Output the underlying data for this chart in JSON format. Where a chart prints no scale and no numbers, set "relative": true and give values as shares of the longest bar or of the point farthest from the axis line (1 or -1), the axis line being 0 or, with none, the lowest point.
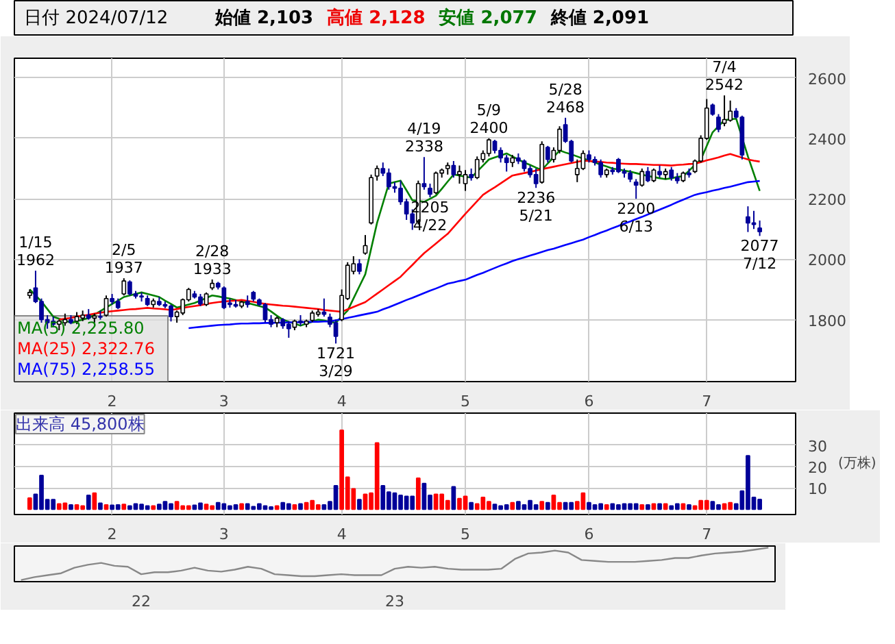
{
  "chart_data": [
    {
      "type": "candlestick",
      "title": "日付 2024/07/12",
      "categories": [
        null,
        null,
        null,
        null,
        null,
        null,
        null,
        null,
        null,
        null,
        null,
        null,
        null,
        null,
        "2",
        null,
        null,
        null,
        null,
        null,
        null,
        null,
        null,
        null,
        null,
        null,
        null,
        null,
        null,
        null,
        null,
        null,
        null,
        "3",
        null,
        null,
        null,
        null,
        null,
        null,
        null,
        null,
        null,
        null,
        null,
        null,
        null,
        null,
        null,
        null,
        null,
        null,
        null,
        "4",
        null,
        null,
        null,
        null,
        null,
        null,
        null,
        null,
        null,
        null,
        null,
        null,
        null,
        null,
        null,
        null,
        null,
        null,
        null,
        null,
        "5",
        null,
        null,
        null,
        null,
        null,
        null,
        null,
        null,
        null,
        null,
        null,
        null,
        null,
        null,
        null,
        null,
        null,
        null,
        null,
        null,
        "6",
        null,
        null,
        null,
        null,
        null,
        null,
        null,
        null,
        null,
        null,
        null,
        null,
        null,
        null,
        null,
        null,
        null,
        null,
        null,
        "7",
        null,
        null,
        null,
        null,
        null,
        null,
        null,
        null,
        null
      ],
      "ohlc": [
        [
          1880,
          1900,
          1870,
          1890
        ],
        [
          1905,
          1962,
          1855,
          1860
        ],
        [
          1860,
          1870,
          1790,
          1800
        ],
        [
          1800,
          1815,
          1770,
          1790
        ],
        [
          1795,
          1810,
          1775,
          1785
        ],
        [
          1785,
          1800,
          1765,
          1795
        ],
        [
          1790,
          1820,
          1780,
          1800
        ],
        [
          1800,
          1815,
          1785,
          1790
        ],
        [
          1795,
          1825,
          1785,
          1810
        ],
        [
          1805,
          1830,
          1795,
          1815
        ],
        [
          1815,
          1835,
          1800,
          1805
        ],
        [
          1805,
          1820,
          1790,
          1812
        ],
        [
          1810,
          1830,
          1800,
          1808
        ],
        [
          1815,
          1880,
          1810,
          1870
        ],
        [
          1870,
          1885,
          1850,
          1860
        ],
        [
          1860,
          1870,
          1835,
          1840
        ],
        [
          1885,
          1937,
          1880,
          1928
        ],
        [
          1925,
          1930,
          1880,
          1885
        ],
        [
          1885,
          1895,
          1870,
          1878
        ],
        [
          1878,
          1890,
          1860,
          1875
        ],
        [
          1870,
          1880,
          1845,
          1850
        ],
        [
          1850,
          1870,
          1840,
          1862
        ],
        [
          1860,
          1875,
          1845,
          1850
        ],
        [
          1850,
          1860,
          1838,
          1845
        ],
        [
          1845,
          1850,
          1794,
          1810
        ],
        [
          1810,
          1830,
          1790,
          1825
        ],
        [
          1822,
          1870,
          1815,
          1866
        ],
        [
          1866,
          1905,
          1860,
          1900
        ],
        [
          1885,
          1895,
          1870,
          1875
        ],
        [
          1875,
          1885,
          1845,
          1852
        ],
        [
          1850,
          1890,
          1845,
          1885
        ],
        [
          1905,
          1933,
          1898,
          1920
        ],
        [
          1920,
          1925,
          1900,
          1908
        ],
        [
          1905,
          1910,
          1835,
          1840
        ],
        [
          1855,
          1870,
          1840,
          1850
        ],
        [
          1850,
          1865,
          1840,
          1845
        ],
        [
          1845,
          1862,
          1838,
          1858
        ],
        [
          1860,
          1880,
          1840,
          1850
        ],
        [
          1890,
          1895,
          1860,
          1868
        ],
        [
          1865,
          1870,
          1845,
          1850
        ],
        [
          1850,
          1855,
          1790,
          1800
        ],
        [
          1800,
          1815,
          1775,
          1785
        ],
        [
          1790,
          1810,
          1775,
          1805
        ],
        [
          1800,
          1805,
          1770,
          1780
        ],
        [
          1785,
          1795,
          1740,
          1770
        ],
        [
          1775,
          1800,
          1765,
          1795
        ],
        [
          1795,
          1815,
          1780,
          1790
        ],
        [
          1785,
          1800,
          1775,
          1795
        ],
        [
          1798,
          1830,
          1792,
          1822
        ],
        [
          1818,
          1835,
          1810,
          1825
        ],
        [
          1825,
          1870,
          1810,
          1818
        ],
        [
          1808,
          1820,
          1775,
          1785
        ],
        [
          1790,
          1800,
          1721,
          1745
        ],
        [
          1800,
          1900,
          1795,
          1880
        ],
        [
          1870,
          1990,
          1865,
          1980
        ],
        [
          1960,
          2010,
          1950,
          1985
        ],
        [
          1985,
          2000,
          1950,
          1960
        ],
        [
          2020,
          2080,
          2015,
          2045
        ],
        [
          2120,
          2280,
          2115,
          2270
        ],
        [
          2275,
          2310,
          2260,
          2300
        ],
        [
          2300,
          2320,
          2275,
          2285
        ],
        [
          2285,
          2300,
          2230,
          2240
        ],
        [
          2240,
          2255,
          2220,
          2235
        ],
        [
          2235,
          2260,
          2180,
          2190
        ],
        [
          2190,
          2200,
          2130,
          2150
        ],
        [
          2150,
          2165,
          2097,
          2120
        ],
        [
          2125,
          2260,
          2115,
          2250
        ],
        [
          2250,
          2338,
          2230,
          2240
        ],
        [
          2235,
          2250,
          2205,
          2215
        ],
        [
          2220,
          2290,
          2215,
          2285
        ],
        [
          2285,
          2300,
          2270,
          2295
        ],
        [
          2300,
          2320,
          2280,
          2310
        ],
        [
          2310,
          2325,
          2270,
          2280
        ],
        [
          2280,
          2310,
          2250,
          2290
        ],
        [
          2250,
          2295,
          2226,
          2280
        ],
        [
          2280,
          2300,
          2260,
          2270
        ],
        [
          2270,
          2340,
          2265,
          2330
        ],
        [
          2330,
          2360,
          2320,
          2350
        ],
        [
          2350,
          2400,
          2340,
          2395
        ],
        [
          2390,
          2395,
          2350,
          2360
        ],
        [
          2360,
          2370,
          2320,
          2335
        ],
        [
          2335,
          2345,
          2290,
          2320
        ],
        [
          2320,
          2345,
          2305,
          2335
        ],
        [
          2335,
          2350,
          2315,
          2325
        ],
        [
          2325,
          2330,
          2290,
          2300
        ],
        [
          2300,
          2310,
          2270,
          2280
        ],
        [
          2280,
          2300,
          2236,
          2250
        ],
        [
          2255,
          2390,
          2250,
          2380
        ],
        [
          2370,
          2375,
          2320,
          2330
        ],
        [
          2330,
          2370,
          2320,
          2360
        ],
        [
          2360,
          2440,
          2350,
          2430
        ],
        [
          2445,
          2468,
          2385,
          2390
        ],
        [
          2390,
          2395,
          2320,
          2325
        ],
        [
          2280,
          2330,
          2255,
          2300
        ],
        [
          2300,
          2360,
          2295,
          2350
        ],
        [
          2345,
          2360,
          2320,
          2330
        ],
        [
          2330,
          2340,
          2310,
          2320
        ],
        [
          2320,
          2330,
          2270,
          2280
        ],
        [
          2280,
          2300,
          2270,
          2295
        ],
        [
          2295,
          2305,
          2280,
          2290
        ],
        [
          2330,
          2335,
          2285,
          2290
        ],
        [
          2290,
          2300,
          2270,
          2285
        ],
        [
          2285,
          2295,
          2255,
          2265
        ],
        [
          2255,
          2265,
          2200,
          2245
        ],
        [
          2245,
          2300,
          2240,
          2290
        ],
        [
          2290,
          2305,
          2255,
          2260
        ],
        [
          2260,
          2300,
          2255,
          2295
        ],
        [
          2290,
          2310,
          2270,
          2280
        ],
        [
          2280,
          2300,
          2265,
          2290
        ],
        [
          2295,
          2305,
          2260,
          2270
        ],
        [
          2270,
          2285,
          2250,
          2260
        ],
        [
          2260,
          2290,
          2255,
          2285
        ],
        [
          2285,
          2300,
          2270,
          2280
        ],
        [
          2290,
          2330,
          2285,
          2325
        ],
        [
          2325,
          2410,
          2320,
          2400
        ],
        [
          2400,
          2530,
          2395,
          2500
        ],
        [
          2510,
          2515,
          2475,
          2480
        ],
        [
          2470,
          2480,
          2420,
          2430
        ],
        [
          2450,
          2542,
          2440,
          2462
        ],
        [
          2460,
          2525,
          2455,
          2490
        ],
        [
          2490,
          2500,
          2465,
          2470
        ],
        [
          2470,
          2475,
          2330,
          2345
        ],
        [
          2140,
          2175,
          2090,
          2120
        ],
        [
          2120,
          2160,
          2100,
          2115
        ],
        [
          2103,
          2128,
          2077,
          2091
        ]
      ],
      "series": [
        {
          "type": "line",
          "name": "MA(5)  2,225.80",
          "color": "#008000",
          "values": [
            1900,
            1880,
            1860,
            1835,
            1810,
            1803,
            1797,
            1790,
            1795,
            1800,
            1805,
            1817,
            1828,
            1840,
            1852,
            1863,
            1875,
            1880,
            1885,
            1890,
            1885,
            1880,
            1875,
            1863,
            1852,
            1840,
            1845,
            1850,
            1855,
            1863,
            1872,
            1880,
            1877,
            1873,
            1870,
            1865,
            1860,
            1855,
            1850,
            1845,
            1840,
            1827,
            1813,
            1800,
            1793,
            1787,
            1780,
            1787,
            1793,
            1800,
            1797,
            1793,
            1790,
            1810,
            1830,
            1870,
            1910,
            1950,
            2035,
            2120,
            2185,
            2250,
            2255,
            2260,
            2228,
            2195,
            2193,
            2190,
            2200,
            2210,
            2233,
            2257,
            2280,
            2277,
            2273,
            2270,
            2290,
            2310,
            2330,
            2337,
            2343,
            2350,
            2340,
            2330,
            2320,
            2312,
            2303,
            2295,
            2317,
            2338,
            2360,
            2353,
            2347,
            2340,
            2333,
            2327,
            2320,
            2313,
            2307,
            2300,
            2297,
            2293,
            2290,
            2285,
            2280,
            2275,
            2272,
            2268,
            2265,
            2268,
            2272,
            2275,
            2293,
            2312,
            2330,
            2375,
            2420,
            2440,
            2460,
            2463,
            2465,
            2403,
            2340,
            2283,
            2226
          ]
        },
        {
          "type": "line",
          "name": "MA(25)  2,322.76",
          "color": "#ff0000",
          "values": [
            null,
            null,
            null,
            null,
            null,
            1800,
            1803,
            1806,
            1810,
            1813,
            1816,
            1820,
            1823,
            1826,
            1828,
            1830,
            1832,
            1834,
            1835,
            1837,
            1839,
            1837,
            1836,
            1834,
            1832,
            1835,
            1839,
            1842,
            1845,
            1848,
            1852,
            1855,
            1858,
            1860,
            1862,
            1863,
            1865,
            1862,
            1859,
            1855,
            1852,
            1850,
            1848,
            1846,
            1845,
            1843,
            1841,
            1839,
            1837,
            1835,
            1832,
            1830,
            1828,
            1826,
            1834,
            1842,
            1850,
            1858,
            1872,
            1886,
            1900,
            1914,
            1928,
            1942,
            1962,
            1981,
            2001,
            2020,
            2036,
            2052,
            2068,
            2084,
            2106,
            2128,
            2150,
            2171,
            2192,
            2213,
            2226,
            2238,
            2251,
            2264,
            2277,
            2281,
            2285,
            2289,
            2293,
            2298,
            2302,
            2306,
            2310,
            2314,
            2318,
            2322,
            2326,
            2325,
            2323,
            2322,
            2320,
            2319,
            2317,
            2316,
            2315,
            2315,
            2314,
            2313,
            2312,
            2312,
            2311,
            2310,
            2312,
            2313,
            2315,
            2316,
            2321,
            2327,
            2332,
            2337,
            2343,
            2348,
            2342,
            2336,
            2330,
            2326,
            2323
          ]
        },
        {
          "type": "line",
          "name": "MA(75)  2,258.55",
          "color": "#0000ff",
          "values": [
            null,
            null,
            null,
            null,
            null,
            null,
            null,
            null,
            null,
            null,
            null,
            null,
            null,
            null,
            null,
            null,
            null,
            null,
            null,
            null,
            null,
            null,
            null,
            null,
            null,
            null,
            null,
            1772,
            1774,
            1776,
            1778,
            1780,
            1782,
            1783,
            1784,
            1786,
            1787,
            1787,
            1788,
            1788,
            1789,
            1789,
            1790,
            1790,
            1791,
            1791,
            1792,
            1792,
            1793,
            1793,
            1794,
            1794,
            1798,
            1802,
            1806,
            1810,
            1814,
            1818,
            1822,
            1826,
            1834,
            1841,
            1849,
            1857,
            1865,
            1872,
            1880,
            1888,
            1896,
            1903,
            1911,
            1919,
            1923,
            1928,
            1932,
            1940,
            1948,
            1955,
            1963,
            1971,
            1979,
            1986,
            1994,
            2000,
            2006,
            2012,
            2018,
            2024,
            2030,
            2035,
            2041,
            2047,
            2053,
            2059,
            2065,
            2073,
            2080,
            2088,
            2095,
            2103,
            2110,
            2118,
            2125,
            2133,
            2140,
            2148,
            2156,
            2164,
            2172,
            2180,
            2189,
            2197,
            2205,
            2213,
            2218,
            2222,
            2227,
            2231,
            2236,
            2240,
            2245,
            2250,
            2255,
            2257,
            2259
          ]
        }
      ],
      "annotations": [
        "始値 2,103",
        "高値 2,128",
        "安値 2,077",
        "終値 2,091",
        {
          "text": "1/15\n1962",
          "y": 1962
        },
        {
          "text": "2/5\n1937",
          "y": 1937
        },
        {
          "text": "2/28\n1933",
          "y": 1933
        },
        {
          "text": "1721\n3/29",
          "y": 1721
        },
        {
          "text": "4/19\n2338",
          "y": 2338
        },
        {
          "text": "2205\n4/22",
          "y": 2205
        },
        {
          "text": "5/9\n2400",
          "y": 2400
        },
        {
          "text": "2236\n5/21",
          "y": 2236
        },
        {
          "text": "5/28\n2468",
          "y": 2468
        },
        {
          "text": "2200\n6/13",
          "y": 2200
        },
        {
          "text": "7/4\n2542",
          "y": 2542
        },
        {
          "text": "2077\n7/12",
          "y": 2077
        }
      ],
      "ylim": [
        1595,
        2665
      ],
      "yticks": [
        1800,
        2000,
        2200,
        2400,
        2600
      ],
      "grid": true,
      "legend": "bottom left"
    },
    {
      "type": "bar",
      "categories": [
        null,
        null,
        null,
        null,
        null,
        null,
        null,
        null,
        null,
        null,
        null,
        null,
        null,
        null,
        "2",
        null,
        null,
        null,
        null,
        null,
        null,
        null,
        null,
        null,
        null,
        null,
        null,
        null,
        null,
        null,
        null,
        null,
        null,
        "3",
        null,
        null,
        null,
        null,
        null,
        null,
        null,
        null,
        null,
        null,
        null,
        null,
        null,
        null,
        null,
        null,
        null,
        null,
        null,
        "4",
        null,
        null,
        null,
        null,
        null,
        null,
        null,
        null,
        null,
        null,
        null,
        null,
        null,
        null,
        null,
        null,
        null,
        null,
        null,
        null,
        "5",
        null,
        null,
        null,
        null,
        null,
        null,
        null,
        null,
        null,
        null,
        null,
        null,
        null,
        null,
        null,
        null,
        null,
        null,
        null,
        null,
        "6",
        null,
        null,
        null,
        null,
        null,
        null,
        null,
        null,
        null,
        null,
        null,
        null,
        null,
        null,
        null,
        null,
        null,
        null,
        null,
        "7",
        null,
        null,
        null,
        null,
        null,
        null,
        null,
        null,
        null
      ],
      "values": [
        5.2,
        7,
        15.8,
        4.5,
        4.5,
        2.5,
        2.8,
        2,
        2,
        1.5,
        6.5,
        7.5,
        2.8,
        2,
        1.8,
        2,
        2.2,
        1.5,
        2.5,
        2.2,
        1.5,
        1.5,
        2.2,
        3.5,
        2.5,
        3.5,
        1.5,
        1.5,
        1.8,
        2.8,
        2.2,
        1.5,
        3,
        2.5,
        1.5,
        2,
        2.5,
        2.5,
        1.2,
        2.5,
        1.5,
        1,
        1.5,
        3,
        2.5,
        2,
        2.5,
        3,
        4,
        2,
        2,
        3.5,
        11,
        37,
        15,
        9.5,
        4.5,
        7,
        7.5,
        31,
        11,
        8,
        7.5,
        6.5,
        6,
        6,
        14.5,
        12,
        6.5,
        7,
        7,
        4,
        10.5,
        5,
        6,
        3,
        2.5,
        5.5,
        3.5,
        2.2,
        1.5,
        2,
        3,
        3.5,
        2,
        4,
        2,
        3.5,
        3,
        6.5,
        3,
        3,
        3,
        3.5,
        7.5,
        3,
        2,
        2.5,
        2,
        2.5,
        2,
        2.5,
        2.5,
        2.5,
        2,
        2,
        2.5,
        2.5,
        2.5,
        1.5,
        2.5,
        2.5,
        2,
        1.5,
        4,
        4,
        3.5,
        2,
        2.5,
        3,
        2.5,
        8.5,
        25,
        5.5,
        4.6
      ],
      "colors": [
        "#ff0000",
        "#000099",
        "#000099",
        "#000099",
        "#000099",
        "#ff0000",
        "#ff0000",
        "#000099",
        "#ff0000",
        "#ff0000",
        "#000099",
        "#ff0000",
        "#000099",
        "#ff0000",
        "#000099",
        "#000099",
        "#ff0000",
        "#000099",
        "#000099",
        "#000099",
        "#000099",
        "#ff0000",
        "#000099",
        "#000099",
        "#000099",
        "#ff0000",
        "#ff0000",
        "#ff0000",
        "#000099",
        "#000099",
        "#ff0000",
        "#ff0000",
        "#000099",
        "#000099",
        "#000099",
        "#000099",
        "#ff0000",
        "#000099",
        "#000099",
        "#000099",
        "#000099",
        "#000099",
        "#ff0000",
        "#000099",
        "#000099",
        "#ff0000",
        "#000099",
        "#ff0000",
        "#ff0000",
        "#ff0000",
        "#000099",
        "#000099",
        "#000099",
        "#ff0000",
        "#ff0000",
        "#ff0000",
        "#000099",
        "#ff0000",
        "#ff0000",
        "#ff0000",
        "#000099",
        "#000099",
        "#000099",
        "#000099",
        "#000099",
        "#000099",
        "#ff0000",
        "#000099",
        "#000099",
        "#ff0000",
        "#ff0000",
        "#ff0000",
        "#000099",
        "#ff0000",
        "#ff0000",
        "#000099",
        "#ff0000",
        "#ff0000",
        "#ff0000",
        "#000099",
        "#000099",
        "#000099",
        "#ff0000",
        "#000099",
        "#000099",
        "#000099",
        "#000099",
        "#ff0000",
        "#000099",
        "#ff0000",
        "#ff0000",
        "#000099",
        "#000099",
        "#ff0000",
        "#ff0000",
        "#000099",
        "#000099",
        "#000099",
        "#ff0000",
        "#000099",
        "#000099",
        "#000099",
        "#000099",
        "#000099",
        "#ff0000",
        "#000099",
        "#ff0000",
        "#000099",
        "#ff0000",
        "#000099",
        "#000099",
        "#ff0000",
        "#000099",
        "#ff0000",
        "#ff0000",
        "#ff0000",
        "#000099",
        "#000099",
        "#ff0000",
        "#ff0000",
        "#000099",
        "#000099",
        "#000099",
        "#000099",
        "#000099"
      ],
      "annotations": [
        "出来高 45,800株"
      ],
      "ylabel": "(万株)",
      "ylim": [
        -2.5,
        45
      ],
      "yticks": [
        10,
        20,
        30
      ],
      "grid": true
    },
    {
      "type": "line",
      "relative": true,
      "color": "#888888",
      "tick_labels": "x",
      "categories": [
        null,
        null,
        null,
        null,
        null,
        null,
        null,
        null,
        null,
        "22",
        null,
        null,
        null,
        null,
        null,
        null,
        null,
        null,
        null,
        null,
        null,
        null,
        null,
        null,
        null,
        null,
        null,
        null,
        "23",
        null,
        null,
        null,
        null,
        null,
        null,
        null,
        null,
        null,
        null,
        null,
        null,
        null,
        null,
        null,
        null,
        null,
        null,
        null,
        null,
        null,
        null,
        null,
        null,
        null,
        null,
        null,
        null
      ],
      "values": [
        0,
        0.09,
        0.15,
        0.21,
        0.38,
        0.47,
        0.53,
        0.44,
        0.41,
        0.18,
        0.24,
        0.24,
        0.29,
        0.38,
        0.29,
        0.26,
        0.32,
        0.41,
        0.35,
        0.18,
        0.15,
        0.12,
        0.12,
        0.15,
        0.18,
        0.15,
        0.15,
        0.15,
        0.35,
        0.41,
        0.38,
        0.41,
        0.35,
        0.32,
        0.32,
        0.32,
        0.35,
        0.65,
        0.82,
        0.85,
        0.91,
        0.85,
        0.62,
        0.59,
        0.56,
        0.56,
        0.56,
        0.59,
        0.62,
        0.68,
        0.68,
        0.76,
        0.82,
        0.85,
        0.88,
        0.94,
        1
      ]
    }
  ]
}
